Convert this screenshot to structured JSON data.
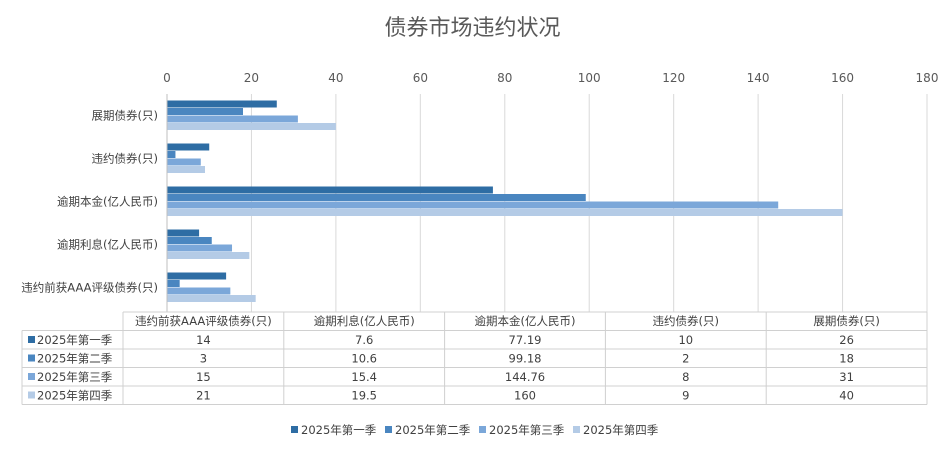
{
  "chart_data": {
    "type": "bar",
    "orientation": "horizontal",
    "title": "债券市场违约状况",
    "categories": [
      "违约前获AAA评级债券(只)",
      "逾期利息(亿人民币)",
      "逾期本金(亿人民币)",
      "违约债券(只)",
      "展期债券(只)"
    ],
    "series": [
      {
        "name": "2025年第一季",
        "values": [
          14,
          7.6,
          77.19,
          10,
          26
        ],
        "color": "#2e6da4"
      },
      {
        "name": "2025年第二季",
        "values": [
          3,
          10.6,
          99.18,
          2,
          18
        ],
        "color": "#4a86c0"
      },
      {
        "name": "2025年第三季",
        "values": [
          15,
          15.4,
          144.76,
          8,
          31
        ],
        "color": "#7ba7d9"
      },
      {
        "name": "2025年第四季",
        "values": [
          21,
          19.5,
          160,
          9,
          40
        ],
        "color": "#b4cbe6"
      }
    ],
    "xlim": [
      0,
      180
    ],
    "xticks": [
      0,
      20,
      40,
      60,
      80,
      100,
      120,
      140,
      160,
      180
    ],
    "grid": true,
    "legend_position": "bottom",
    "data_table": true
  }
}
